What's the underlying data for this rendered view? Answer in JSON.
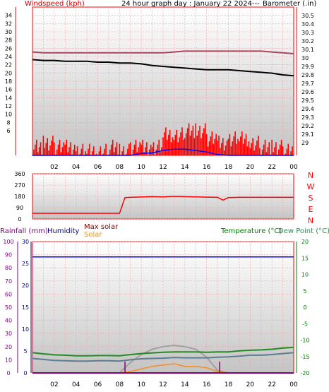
{
  "colors": {
    "frame": "#ff0000",
    "grid_red": "#f2a0a0",
    "plot_top": "#ffffff",
    "plot_bottom": "#c4c4c4",
    "wind": "#ff0000",
    "avg_wind": "#0000ff",
    "barometer": "#000000",
    "max_barometer": "#b04060",
    "direction": "#ff0000",
    "rain": "#800080",
    "humidity": "#0000ff",
    "solar": "#f09020",
    "max_solar": "#a0a0a0",
    "temperature": "#228b22",
    "dew_point": "#5a7e8e",
    "label_wind": "#cc0000",
    "label_humidity": "#000080",
    "label_maxsolar": "#800000",
    "label_temp": "#008000",
    "label_dew": "#2e8b57"
  },
  "hour_ticks": [
    "02",
    "04",
    "06",
    "08",
    "10",
    "12",
    "14",
    "16",
    "18",
    "20",
    "22",
    "00"
  ],
  "chart_data": [
    {
      "type": "line",
      "title": "24 hour graph day : January 22 2024---",
      "ylabel": "Windspeed (kph)",
      "y2label": "Barometer (.in)",
      "ylim": [
        0,
        36
      ],
      "y2lim": [
        28.85,
        30.6
      ],
      "yticks": [
        "6",
        "8",
        "10",
        "12",
        "14",
        "16",
        "18",
        "20",
        "22",
        "24",
        "26",
        "28",
        "30",
        "32",
        "34"
      ],
      "y2ticks": [
        "29",
        "29.1",
        "29.2",
        "29.3",
        "29.4",
        "29.5",
        "29.6",
        "29.7",
        "29.8",
        "29.9",
        "30",
        "30.1",
        "30.2",
        "30.3",
        "30.4",
        "30.5"
      ],
      "x_hours": [
        0,
        1,
        2,
        3,
        4,
        5,
        6,
        7,
        8,
        9,
        10,
        11,
        12,
        13,
        14,
        15,
        16,
        17,
        18,
        19,
        20,
        21,
        22,
        23,
        24
      ],
      "series": [
        {
          "key": "barometer",
          "axis": "right",
          "values": [
            29.98,
            29.97,
            29.97,
            29.96,
            29.96,
            29.96,
            29.95,
            29.95,
            29.94,
            29.94,
            29.93,
            29.91,
            29.9,
            29.89,
            29.88,
            29.87,
            29.86,
            29.86,
            29.86,
            29.85,
            29.84,
            29.83,
            29.82,
            29.8,
            29.79
          ]
        },
        {
          "key": "max_barometer",
          "axis": "right",
          "values": [
            30.07,
            30.06,
            30.06,
            30.06,
            30.06,
            30.06,
            30.06,
            30.06,
            30.06,
            30.06,
            30.06,
            30.06,
            30.06,
            30.07,
            30.08,
            30.08,
            30.08,
            30.08,
            30.08,
            30.08,
            30.08,
            30.08,
            30.07,
            30.06,
            30.05
          ]
        },
        {
          "key": "wind_gust",
          "axis": "left",
          "values": [
            2,
            3,
            2,
            2,
            1,
            1,
            1,
            2,
            1,
            2,
            2,
            2,
            5,
            5,
            6,
            6,
            4,
            3,
            4,
            4,
            3,
            2,
            2,
            1,
            1
          ]
        },
        {
          "key": "avg_wind",
          "axis": "left",
          "values": [
            0,
            0,
            0,
            0,
            0,
            0,
            0,
            0,
            0,
            0,
            0.5,
            0.6,
            1.2,
            1.5,
            1.5,
            1.2,
            0.8,
            0.2,
            0,
            0,
            0,
            0,
            0,
            0,
            0
          ]
        }
      ]
    },
    {
      "type": "line",
      "ylabel": "",
      "ylim": [
        0,
        360
      ],
      "yticks": [
        "0",
        "90",
        "180",
        "270",
        "360"
      ],
      "compass": [
        "N",
        "W",
        "S",
        "E",
        "N"
      ],
      "x_hours": [
        0,
        1,
        2,
        3,
        4,
        5,
        6,
        7,
        8,
        8.5,
        9,
        10,
        11,
        12,
        13,
        14,
        15,
        16,
        17,
        17.5,
        18,
        19,
        20,
        21,
        22,
        23,
        24
      ],
      "series": [
        {
          "key": "direction",
          "values": [
            45,
            45,
            45,
            45,
            45,
            45,
            45,
            45,
            45,
            170,
            172,
            175,
            178,
            176,
            180,
            178,
            176,
            174,
            172,
            150,
            170,
            172,
            172,
            172,
            172,
            172,
            172
          ]
        }
      ]
    },
    {
      "type": "line",
      "labels": {
        "rainfall": "Rainfall (mm)",
        "humidity": "Humidity",
        "max_solar": "Max solar",
        "solar": "Solar",
        "temperature": "Temperature (°C)",
        "dew_point": "Dew Point (°C)"
      },
      "rain_ylim": [
        0,
        100
      ],
      "rain_ticks": [
        "0",
        "10",
        "20",
        "30",
        "40",
        "50",
        "60",
        "70",
        "80",
        "90",
        "100"
      ],
      "hum_ylim": [
        0,
        30
      ],
      "hum_ticks": [
        "0",
        "5",
        "10",
        "15",
        "20",
        "25",
        "30"
      ],
      "temp_ylim": [
        -20,
        20
      ],
      "temp_ticks": [
        "-20",
        "-15",
        "-10",
        "-5",
        "0",
        "5",
        "10",
        "15",
        "20"
      ],
      "x_hours": [
        0,
        1,
        2,
        3,
        4,
        5,
        6,
        7,
        8,
        9,
        10,
        11,
        12,
        13,
        14,
        15,
        16,
        17,
        18,
        19,
        20,
        21,
        22,
        23,
        24
      ],
      "series": [
        {
          "key": "humidity",
          "axis": "hum",
          "values": [
            26.5,
            26.5,
            26.5,
            26.5,
            26.5,
            26.5,
            26.5,
            26.5,
            26.5,
            26.5,
            26.5,
            26.5,
            26.5,
            26.5,
            26.5,
            26.5,
            26.5,
            26.5,
            26.5,
            26.5,
            26.5,
            26.5,
            26.5,
            26.5,
            26.5
          ]
        },
        {
          "key": "temperature",
          "axis": "temp",
          "values": [
            -13.8,
            -14.2,
            -14.5,
            -14.6,
            -14.8,
            -14.8,
            -14.7,
            -14.7,
            -14.8,
            -14.4,
            -14.1,
            -13.9,
            -13.7,
            -13.6,
            -13.6,
            -13.6,
            -13.7,
            -13.6,
            -13.6,
            -13.3,
            -13.1,
            -13.0,
            -12.8,
            -12.4,
            -12.2
          ]
        },
        {
          "key": "dew_point",
          "axis": "temp",
          "values": [
            -15.6,
            -15.9,
            -16.2,
            -16.3,
            -16.4,
            -16.4,
            -16.3,
            -16.3,
            -16.4,
            -16.0,
            -15.7,
            -15.6,
            -15.5,
            -15.3,
            -15.4,
            -15.4,
            -15.4,
            -15.2,
            -15.1,
            -14.9,
            -14.6,
            -14.6,
            -14.4,
            -14.1,
            -13.8
          ]
        },
        {
          "key": "max_solar",
          "axis": "solar",
          "values": [
            0,
            0,
            0,
            0,
            0,
            0,
            0,
            0,
            0,
            8,
            14,
            18,
            20,
            21,
            20,
            18,
            12,
            2,
            0,
            0,
            0,
            0,
            0,
            0,
            0
          ]
        },
        {
          "key": "solar",
          "axis": "solar",
          "values": [
            0,
            0,
            0,
            0,
            0,
            0,
            0,
            0,
            0,
            1,
            3,
            5,
            6,
            7,
            5,
            5,
            4,
            1,
            0,
            0,
            0,
            0,
            0,
            0,
            0
          ]
        },
        {
          "key": "rain",
          "axis": "rain",
          "values": [
            0,
            0,
            0,
            0,
            0,
            0,
            0,
            0,
            0,
            0,
            0,
            0,
            0,
            0,
            0,
            0,
            0,
            0,
            0,
            0,
            0,
            0,
            0,
            0,
            0
          ]
        }
      ]
    }
  ]
}
